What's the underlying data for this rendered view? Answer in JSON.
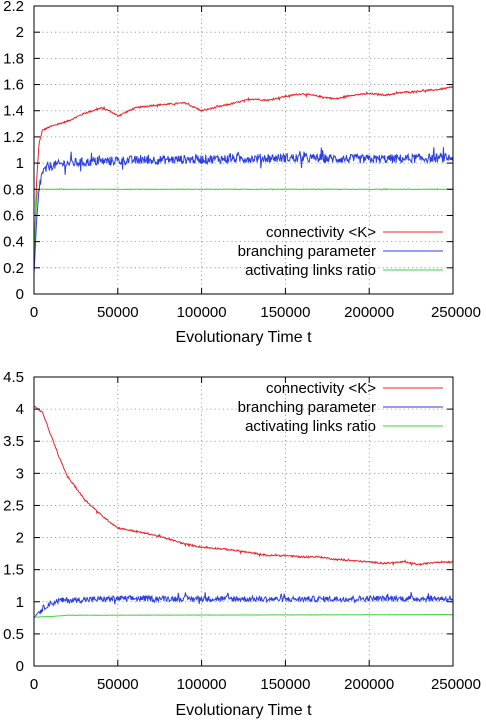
{
  "chart_data": [
    {
      "type": "line",
      "title": "",
      "xlabel": "Evolutionary Time t",
      "ylabel": "",
      "xlim": [
        0,
        250000
      ],
      "ylim": [
        0,
        2.2
      ],
      "xticks": [
        0,
        50000,
        100000,
        150000,
        200000,
        250000
      ],
      "yticks": [
        0,
        0.2,
        0.4,
        0.6,
        0.8,
        1,
        1.2,
        1.4,
        1.6,
        1.8,
        2,
        2.2
      ],
      "grid": true,
      "legend_position": "bottom-right",
      "series": [
        {
          "name": "connectivity <K>",
          "color": "#e8252a",
          "noise": 0.006,
          "points": [
            [
              0,
              0.2
            ],
            [
              1500,
              0.85
            ],
            [
              3000,
              1.15
            ],
            [
              5000,
              1.25
            ],
            [
              10000,
              1.28
            ],
            [
              20000,
              1.32
            ],
            [
              30000,
              1.38
            ],
            [
              40000,
              1.42
            ],
            [
              45000,
              1.4
            ],
            [
              50000,
              1.36
            ],
            [
              60000,
              1.42
            ],
            [
              70000,
              1.44
            ],
            [
              80000,
              1.45
            ],
            [
              90000,
              1.46
            ],
            [
              100000,
              1.4
            ],
            [
              110000,
              1.43
            ],
            [
              120000,
              1.46
            ],
            [
              130000,
              1.49
            ],
            [
              140000,
              1.48
            ],
            [
              150000,
              1.51
            ],
            [
              160000,
              1.53
            ],
            [
              170000,
              1.51
            ],
            [
              180000,
              1.49
            ],
            [
              190000,
              1.52
            ],
            [
              200000,
              1.53
            ],
            [
              210000,
              1.52
            ],
            [
              220000,
              1.54
            ],
            [
              230000,
              1.55
            ],
            [
              240000,
              1.56
            ],
            [
              250000,
              1.58
            ]
          ]
        },
        {
          "name": "branching parameter",
          "color": "#2b3fe0",
          "noise": 0.035,
          "points": [
            [
              0,
              0.15
            ],
            [
              1500,
              0.55
            ],
            [
              3000,
              0.8
            ],
            [
              5000,
              0.93
            ],
            [
              10000,
              0.98
            ],
            [
              20000,
              1.0
            ],
            [
              50000,
              1.02
            ],
            [
              100000,
              1.03
            ],
            [
              150000,
              1.04
            ],
            [
              200000,
              1.03
            ],
            [
              250000,
              1.04
            ]
          ]
        },
        {
          "name": "activating links ratio",
          "color": "#41d43a",
          "noise": 0.002,
          "points": [
            [
              0,
              0.3
            ],
            [
              1000,
              0.6
            ],
            [
              2000,
              0.78
            ],
            [
              3000,
              0.8
            ],
            [
              250000,
              0.8
            ]
          ]
        }
      ]
    },
    {
      "type": "line",
      "title": "",
      "xlabel": "Evolutionary Time t",
      "ylabel": "",
      "xlim": [
        0,
        250000
      ],
      "ylim": [
        0,
        4.5
      ],
      "xticks": [
        0,
        50000,
        100000,
        150000,
        200000,
        250000
      ],
      "yticks": [
        0,
        0.5,
        1,
        1.5,
        2,
        2.5,
        3,
        3.5,
        4,
        4.5
      ],
      "grid": true,
      "legend_position": "top-right",
      "series": [
        {
          "name": "connectivity <K>",
          "color": "#e8252a",
          "noise": 0.012,
          "points": [
            [
              0,
              4.05
            ],
            [
              5000,
              3.95
            ],
            [
              10000,
              3.6
            ],
            [
              15000,
              3.25
            ],
            [
              20000,
              2.95
            ],
            [
              30000,
              2.6
            ],
            [
              40000,
              2.35
            ],
            [
              50000,
              2.15
            ],
            [
              60000,
              2.1
            ],
            [
              70000,
              2.05
            ],
            [
              80000,
              1.98
            ],
            [
              90000,
              1.9
            ],
            [
              100000,
              1.85
            ],
            [
              110000,
              1.83
            ],
            [
              120000,
              1.8
            ],
            [
              130000,
              1.76
            ],
            [
              140000,
              1.72
            ],
            [
              150000,
              1.72
            ],
            [
              160000,
              1.7
            ],
            [
              170000,
              1.7
            ],
            [
              180000,
              1.66
            ],
            [
              190000,
              1.64
            ],
            [
              200000,
              1.62
            ],
            [
              210000,
              1.6
            ],
            [
              220000,
              1.62
            ],
            [
              230000,
              1.58
            ],
            [
              240000,
              1.62
            ],
            [
              250000,
              1.62
            ]
          ]
        },
        {
          "name": "branching parameter",
          "color": "#2b3fe0",
          "noise": 0.045,
          "points": [
            [
              0,
              0.75
            ],
            [
              3000,
              0.85
            ],
            [
              8000,
              0.95
            ],
            [
              15000,
              1.02
            ],
            [
              50000,
              1.05
            ],
            [
              100000,
              1.05
            ],
            [
              150000,
              1.04
            ],
            [
              200000,
              1.05
            ],
            [
              250000,
              1.05
            ]
          ]
        },
        {
          "name": "activating links ratio",
          "color": "#41d43a",
          "noise": 0.002,
          "points": [
            [
              0,
              0.76
            ],
            [
              10000,
              0.77
            ],
            [
              20000,
              0.79
            ],
            [
              250000,
              0.8
            ]
          ]
        }
      ]
    }
  ]
}
